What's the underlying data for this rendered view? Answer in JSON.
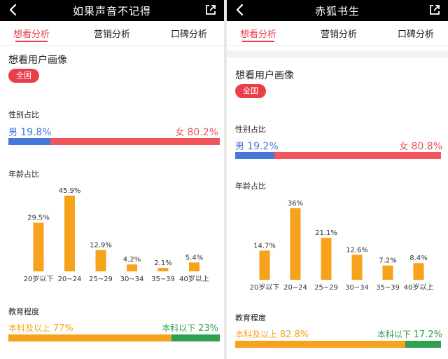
{
  "panels": [
    {
      "title": "如果声音不记得",
      "tabs": [
        "想看分析",
        "营销分析",
        "口碑分析"
      ],
      "section_title": "想看用户画像",
      "region_pill": "全国",
      "gender_label": "性别占比",
      "male_label": "男",
      "male_value": "19.8%",
      "male_pct": 19.8,
      "female_label": "女",
      "female_value": "80.2%",
      "age_label": "年龄占比",
      "chart_data": {
        "type": "bar",
        "categories": [
          "20岁以下",
          "20~24",
          "25~29",
          "30~34",
          "35~39",
          "40岁以上"
        ],
        "values": [
          29.5,
          45.9,
          12.9,
          4.2,
          2.1,
          5.4
        ],
        "value_labels": [
          "29.5%",
          "45.9%",
          "12.9%",
          "4.2%",
          "2.1%",
          "5.4%"
        ],
        "ylim": [
          0,
          45.9
        ]
      },
      "edu_label": "教育程度",
      "edu_a_label": "本科及以上",
      "edu_a_value": "77%",
      "edu_a_pct": 77,
      "edu_b_label": "本科以下",
      "edu_b_value": "23%"
    },
    {
      "title": "赤狐书生",
      "tabs": [
        "想看分析",
        "营销分析",
        "口碑分析"
      ],
      "section_title": "想看用户画像",
      "region_pill": "全国",
      "gender_label": "性别占比",
      "male_label": "男",
      "male_value": "19.2%",
      "male_pct": 19.2,
      "female_label": "女",
      "female_value": "80.8%",
      "age_label": "年龄占比",
      "chart_data": {
        "type": "bar",
        "categories": [
          "20岁以下",
          "20~24",
          "25~29",
          "30~34",
          "35~39",
          "40岁以上"
        ],
        "values": [
          14.7,
          36,
          21.1,
          12.6,
          7.2,
          8.4
        ],
        "value_labels": [
          "14.7%",
          "36%",
          "21.1%",
          "12.6%",
          "7.2%",
          "8.4%"
        ],
        "ylim": [
          0,
          36
        ]
      },
      "edu_label": "教育程度",
      "edu_a_label": "本科及以上",
      "edu_a_value": "82.8%",
      "edu_a_pct": 82.8,
      "edu_b_label": "本科以下",
      "edu_b_value": "17.2%"
    }
  ],
  "colors": {
    "accent": "#e8404a",
    "male": "#4677d8",
    "female": "#f0555b",
    "age_bar": "#f7a21b",
    "edu_a": "#f7a21b",
    "edu_b": "#2fa04e"
  },
  "icons": [
    "back-icon",
    "share-icon"
  ]
}
